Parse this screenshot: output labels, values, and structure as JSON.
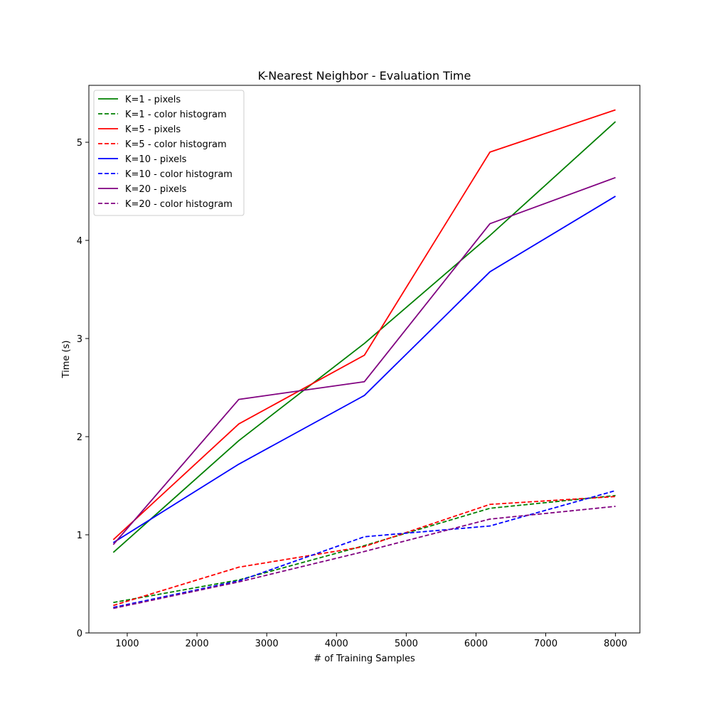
{
  "chart_data": {
    "type": "line",
    "title": "K-Nearest Neighbor - Evaluation Time",
    "xlabel": "# of Training Samples",
    "ylabel": "Time (s)",
    "xlim": [
      450,
      8350
    ],
    "ylim": [
      0,
      5.58
    ],
    "xticks": [
      1000,
      2000,
      3000,
      4000,
      5000,
      6000,
      7000,
      8000
    ],
    "yticks": [
      0,
      1,
      2,
      3,
      4,
      5
    ],
    "grid": false,
    "legend_position": "upper-left",
    "x": [
      800,
      2600,
      4400,
      6200,
      8000
    ],
    "series": [
      {
        "name": "K=1 - pixels",
        "color": "#008000",
        "dash": "solid",
        "values": [
          0.82,
          1.96,
          2.95,
          4.05,
          5.21
        ]
      },
      {
        "name": "K=1 - color histogram",
        "color": "#008000",
        "dash": "dashed",
        "values": [
          0.31,
          0.54,
          0.89,
          1.27,
          1.4
        ]
      },
      {
        "name": "K=5 - pixels",
        "color": "#ff0000",
        "dash": "solid",
        "values": [
          0.95,
          2.13,
          2.83,
          4.9,
          5.33
        ]
      },
      {
        "name": "K=5 - color histogram",
        "color": "#ff0000",
        "dash": "dashed",
        "values": [
          0.28,
          0.67,
          0.88,
          1.31,
          1.39
        ]
      },
      {
        "name": "K=10 - pixels",
        "color": "#0000ff",
        "dash": "solid",
        "values": [
          0.92,
          1.72,
          2.42,
          3.68,
          4.45
        ]
      },
      {
        "name": "K=10 - color histogram",
        "color": "#0000ff",
        "dash": "dashed",
        "values": [
          0.26,
          0.53,
          0.98,
          1.09,
          1.45
        ]
      },
      {
        "name": "K=20 - pixels",
        "color": "#800080",
        "dash": "solid",
        "values": [
          0.9,
          2.38,
          2.56,
          4.17,
          4.64
        ]
      },
      {
        "name": "K=20 - color histogram",
        "color": "#800080",
        "dash": "dashed",
        "values": [
          0.25,
          0.52,
          0.83,
          1.16,
          1.29
        ]
      }
    ]
  }
}
